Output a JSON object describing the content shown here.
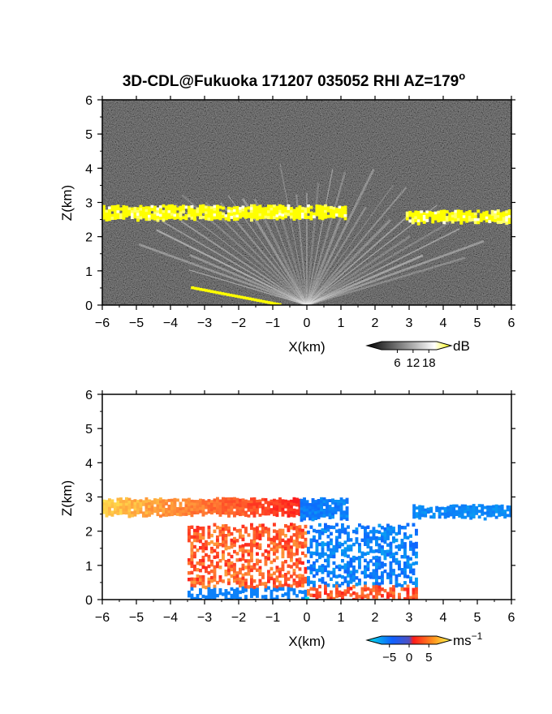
{
  "title": "3D-CDL@Fukuoka 171207 035052 RHI AZ=179",
  "title_superscript": "o",
  "chart_data": [
    {
      "type": "heatmap",
      "name": "reflectivity",
      "xlabel": "X(km)",
      "ylabel": "Z(km)",
      "xlim": [
        -6,
        6
      ],
      "ylim": [
        0,
        6
      ],
      "xticks": [
        -6,
        -5,
        -4,
        -3,
        -2,
        -1,
        0,
        1,
        2,
        3,
        4,
        5,
        6
      ],
      "yticks": [
        0,
        1,
        2,
        3,
        4,
        5,
        6
      ],
      "colorbar": {
        "unit": "dB",
        "ticks": [
          6,
          12,
          18
        ],
        "range": [
          0,
          21
        ],
        "colors": [
          "#000000",
          "#ffffff",
          "#ffff00"
        ]
      },
      "layers": [
        {
          "label": "cloud-base-west",
          "x": [
            -6.0,
            1.1
          ],
          "z": [
            2.55,
            2.9
          ],
          "value": 19
        },
        {
          "label": "cloud-base-east",
          "x": [
            2.9,
            6.0
          ],
          "z": [
            2.45,
            2.75
          ],
          "value": 19
        },
        {
          "label": "ground-echo",
          "x": [
            -3.4,
            -0.8
          ],
          "z": [
            0.0,
            0.5
          ],
          "value": 19
        }
      ]
    },
    {
      "type": "heatmap",
      "name": "doppler-velocity",
      "xlabel": "X(km)",
      "ylabel": "Z(km)",
      "xlim": [
        -6,
        6
      ],
      "ylim": [
        0,
        6
      ],
      "xticks": [
        -6,
        -5,
        -4,
        -3,
        -2,
        -1,
        0,
        1,
        2,
        3,
        4,
        5,
        6
      ],
      "yticks": [
        0,
        1,
        2,
        3,
        4,
        5,
        6
      ],
      "colorbar": {
        "unit": "ms",
        "unit_exponent": "−1",
        "ticks": [
          -5,
          0,
          5
        ],
        "tick_labels": [
          "−5",
          "0",
          "5"
        ],
        "range": [
          -7,
          7
        ],
        "colors": [
          "#00e5e5",
          "#1060ff",
          "#ff1a1a",
          "#ffff55"
        ]
      },
      "layers": [
        {
          "label": "cloud-base-west",
          "x": [
            -6.0,
            -0.2
          ],
          "z": [
            2.5,
            2.95
          ],
          "value": 5
        },
        {
          "label": "cloud-base-center",
          "x": [
            -0.2,
            1.2
          ],
          "z": [
            2.4,
            2.95
          ],
          "value": -3
        },
        {
          "label": "cloud-base-east",
          "x": [
            3.1,
            6.0
          ],
          "z": [
            2.45,
            2.75
          ],
          "value": -4
        },
        {
          "label": "lower-west",
          "x": [
            -3.5,
            0.0
          ],
          "z": [
            0.0,
            2.2
          ],
          "value": 3
        },
        {
          "label": "lower-east",
          "x": [
            0.0,
            3.2
          ],
          "z": [
            0.0,
            2.2
          ],
          "value": -3
        }
      ]
    }
  ]
}
